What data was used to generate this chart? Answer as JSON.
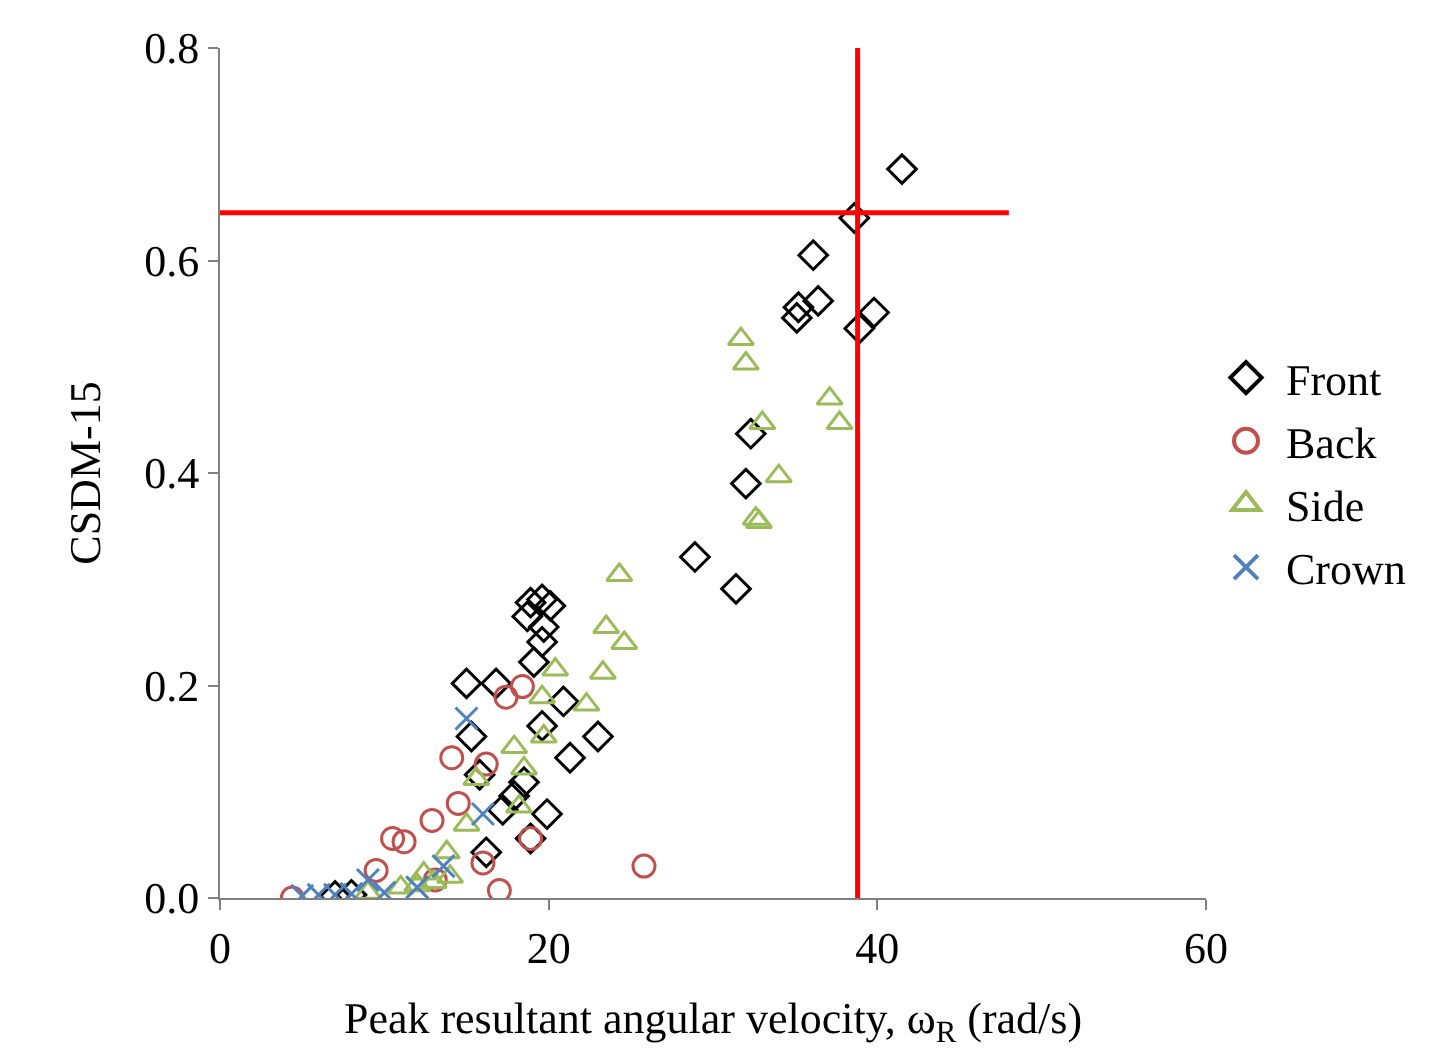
{
  "chart_data": {
    "type": "scatter",
    "xlabel": "Peak resultant angular velocity, ω$_{R}$ (rad/s)",
    "ylabel": "CSDM-15",
    "xlim": [
      0,
      60
    ],
    "xticks": [
      0,
      20,
      40,
      60
    ],
    "ylim": [
      0,
      0.8
    ],
    "yticks": [
      {
        "value": 0,
        "label": "0.0"
      },
      0.2,
      0.4,
      0.6,
      0.8
    ],
    "legend": "right",
    "ref_lines": [
      {
        "axis": "x",
        "value": 38.8,
        "color": "#ff0000"
      },
      {
        "axis": "y",
        "value": 0.645,
        "color": "#ff0000"
      }
    ],
    "series": [
      {
        "name": "Front",
        "color": "#000000",
        "marker": "diamond",
        "x": [
          41.5,
          38.6,
          36.1,
          36.4,
          35.2,
          35.1,
          39.8,
          38.9,
          32.3,
          32.0,
          28.9,
          31.4,
          19.6,
          18.9,
          20.1,
          18.7,
          19.7,
          19.6,
          19.1,
          15.0,
          16.8,
          20.9,
          23.0,
          21.3,
          19.6,
          15.3,
          19.9,
          18.9,
          15.8,
          17.2,
          16.2,
          17.9,
          18.5,
          7,
          8
        ],
        "values": [
          0.686,
          0.64,
          0.605,
          0.562,
          0.556,
          0.546,
          0.551,
          0.536,
          0.437,
          0.39,
          0.321,
          0.291,
          0.281,
          0.278,
          0.275,
          0.265,
          0.255,
          0.241,
          0.222,
          0.202,
          0.202,
          0.185,
          0.152,
          0.132,
          0.162,
          0.152,
          0.079,
          0.056,
          0.116,
          0.083,
          0.043,
          0.096,
          0.109,
          0.002,
          0.003
        ]
      },
      {
        "name": "Back",
        "color": "#c0504d",
        "marker": "circle",
        "x": [
          17.4,
          18.4,
          14.1,
          16.2,
          12.9,
          14.5,
          10.5,
          11.2,
          9.5,
          18.9,
          16.0,
          17.0,
          25.8,
          4.4,
          13.1
        ],
        "values": [
          0.189,
          0.199,
          0.132,
          0.126,
          0.073,
          0.089,
          0.056,
          0.053,
          0.026,
          0.056,
          0.033,
          0.007,
          0.03,
          0.0,
          0.017
        ]
      },
      {
        "name": "Side",
        "color": "#9bbb59",
        "marker": "triangle",
        "x": [
          31.7,
          32.0,
          37.1,
          37.7,
          33.0,
          34.0,
          32.6,
          32.8,
          24.3,
          23.5,
          24.6,
          23.3,
          20.4,
          19.6,
          22.3,
          19.7,
          17.9,
          18.5,
          15.6,
          18.2,
          15.0,
          13.8,
          12.4,
          9,
          11,
          12,
          13,
          14
        ],
        "values": [
          0.526,
          0.503,
          0.47,
          0.447,
          0.447,
          0.397,
          0.357,
          0.354,
          0.304,
          0.255,
          0.24,
          0.212,
          0.215,
          0.189,
          0.182,
          0.152,
          0.142,
          0.122,
          0.112,
          0.086,
          0.069,
          0.043,
          0.023,
          0.005,
          0.01,
          0.012,
          0.015,
          0.02
        ]
      },
      {
        "name": "Crown",
        "color": "#4f81bd",
        "marker": "cross",
        "x": [
          15.0,
          16.0,
          13.6,
          9.0,
          5,
          6,
          7,
          8,
          10,
          12
        ],
        "values": [
          0.169,
          0.079,
          0.03,
          0.017,
          0.002,
          0.003,
          0.003,
          0.004,
          0.005,
          0.01
        ]
      }
    ]
  }
}
